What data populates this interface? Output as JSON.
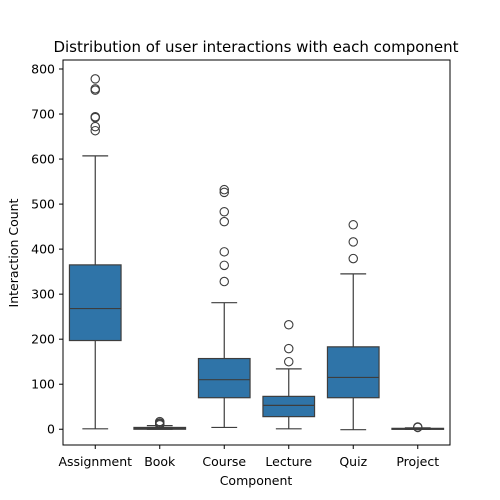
{
  "chart_data": {
    "type": "boxplot",
    "title": "Distribution of user interactions with each component",
    "xlabel": "Component",
    "ylabel": "Interaction Count",
    "ylim": [
      -35,
      820
    ],
    "yticks": [
      0,
      100,
      200,
      300,
      400,
      500,
      600,
      700,
      800
    ],
    "grid": false,
    "legend": "none",
    "colors": {
      "box": "#2f74a8",
      "line": "#3d3d3d",
      "axis": "#000000"
    },
    "categories": [
      "Assignment",
      "Book",
      "Course",
      "Lecture",
      "Quiz",
      "Project"
    ],
    "boxes": [
      {
        "category": "Assignment",
        "q1": 197,
        "median": 268,
        "q3": 365,
        "whisker_low": 1,
        "whisker_high": 607,
        "outliers": [
          663,
          672,
          692,
          694,
          753,
          756,
          778
        ]
      },
      {
        "category": "Book",
        "q1": 0,
        "median": 2,
        "q3": 4,
        "whisker_low": 0,
        "whisker_high": 8,
        "outliers": [
          10,
          12,
          14,
          17
        ]
      },
      {
        "category": "Course",
        "q1": 70,
        "median": 110,
        "q3": 157,
        "whisker_low": 4,
        "whisker_high": 281,
        "outliers": [
          328,
          364,
          394,
          461,
          483,
          526,
          532
        ]
      },
      {
        "category": "Lecture",
        "q1": 28,
        "median": 53,
        "q3": 73,
        "whisker_low": 1,
        "whisker_high": 134,
        "outliers": [
          150,
          179,
          232
        ]
      },
      {
        "category": "Quiz",
        "q1": 70,
        "median": 115,
        "q3": 183,
        "whisker_low": -1,
        "whisker_high": 345,
        "outliers": [
          379,
          416,
          454
        ]
      },
      {
        "category": "Project",
        "q1": 1,
        "median": 1,
        "q3": 2,
        "whisker_low": 0,
        "whisker_high": 3,
        "outliers": [
          4,
          5
        ]
      }
    ]
  }
}
